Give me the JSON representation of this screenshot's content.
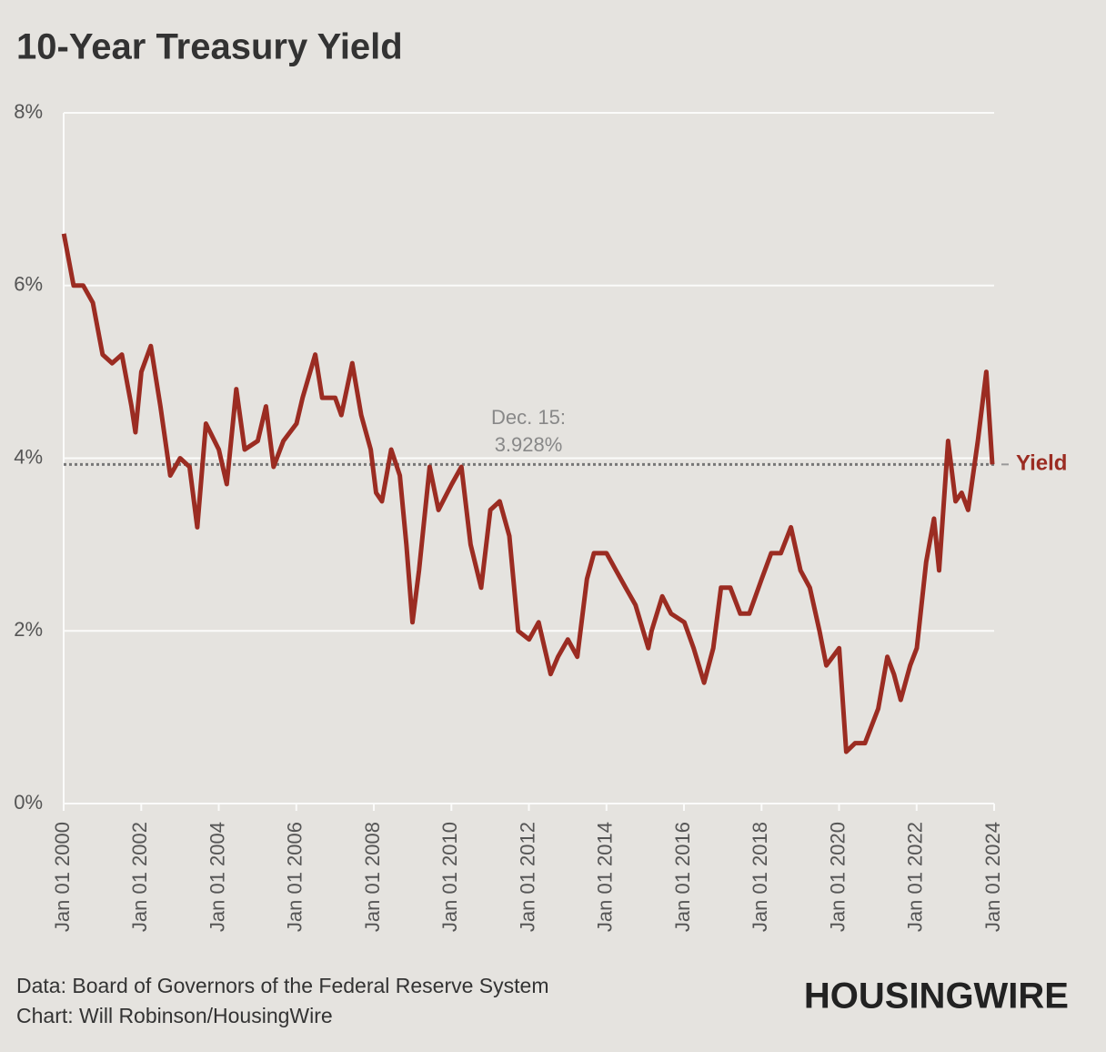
{
  "chart_data": {
    "type": "line",
    "title": "10-Year Treasury Yield",
    "x": [
      "2000-01-03",
      "2000-04-03",
      "2000-07-03",
      "2000-10-02",
      "2001-01-02",
      "2001-04-02",
      "2001-07-02",
      "2001-10-01",
      "2001-11-07",
      "2002-01-02",
      "2002-04-01",
      "2002-07-01",
      "2002-10-01",
      "2003-01-02",
      "2003-04-01",
      "2003-06-13",
      "2003-09-02",
      "2004-01-02",
      "2004-03-16",
      "2004-06-14",
      "2004-09-01",
      "2005-01-03",
      "2005-03-21",
      "2005-06-01",
      "2005-09-01",
      "2006-01-03",
      "2006-03-01",
      "2006-06-28",
      "2006-09-01",
      "2007-01-02",
      "2007-03-01",
      "2007-06-12",
      "2007-09-04",
      "2007-12-03",
      "2008-01-22",
      "2008-03-17",
      "2008-06-13",
      "2008-09-02",
      "2008-11-03",
      "2008-12-30",
      "2009-03-02",
      "2009-06-10",
      "2009-09-01",
      "2010-01-04",
      "2010-04-05",
      "2010-07-01",
      "2010-10-08",
      "2011-01-03",
      "2011-04-01",
      "2011-07-01",
      "2011-09-22",
      "2012-01-03",
      "2012-04-02",
      "2012-07-24",
      "2012-10-01",
      "2013-01-02",
      "2013-04-01",
      "2013-07-01",
      "2013-09-05",
      "2014-01-02",
      "2014-04-01",
      "2014-07-01",
      "2014-10-01",
      "2015-01-30",
      "2015-03-02",
      "2015-06-10",
      "2015-09-01",
      "2016-01-04",
      "2016-04-01",
      "2016-07-08",
      "2016-10-03",
      "2016-12-15",
      "2017-03-13",
      "2017-06-14",
      "2017-09-07",
      "2018-01-02",
      "2018-04-02",
      "2018-07-02",
      "2018-10-05",
      "2019-01-03",
      "2019-04-01",
      "2019-07-01",
      "2019-09-03",
      "2020-01-02",
      "2020-03-09",
      "2020-06-01",
      "2020-09-01",
      "2021-01-04",
      "2021-03-31",
      "2021-06-01",
      "2021-08-04",
      "2021-11-01",
      "2022-01-03",
      "2022-04-01",
      "2022-06-14",
      "2022-08-01",
      "2022-10-24",
      "2023-01-03",
      "2023-03-01",
      "2023-05-01",
      "2023-08-01",
      "2023-10-19",
      "2023-11-15",
      "2023-12-15"
    ],
    "series": [
      {
        "name": "Yield",
        "color": "#9b2c22",
        "values": [
          6.6,
          6.0,
          6.0,
          5.8,
          5.2,
          5.1,
          5.2,
          4.6,
          4.3,
          5.0,
          5.3,
          4.6,
          3.8,
          4.0,
          3.9,
          3.2,
          4.4,
          4.1,
          3.7,
          4.8,
          4.1,
          4.2,
          4.6,
          3.9,
          4.2,
          4.4,
          4.7,
          5.2,
          4.7,
          4.7,
          4.5,
          5.1,
          4.5,
          4.1,
          3.6,
          3.5,
          4.1,
          3.8,
          3.0,
          2.1,
          2.7,
          3.9,
          3.4,
          3.7,
          3.9,
          3.0,
          2.5,
          3.4,
          3.5,
          3.1,
          2.0,
          1.9,
          2.1,
          1.5,
          1.7,
          1.9,
          1.7,
          2.6,
          2.9,
          2.9,
          2.7,
          2.5,
          2.3,
          1.8,
          2.0,
          2.4,
          2.2,
          2.1,
          1.8,
          1.4,
          1.8,
          2.5,
          2.5,
          2.2,
          2.2,
          2.6,
          2.9,
          2.9,
          3.2,
          2.7,
          2.5,
          2.0,
          1.6,
          1.8,
          0.6,
          0.7,
          0.7,
          1.1,
          1.7,
          1.5,
          1.2,
          1.6,
          1.8,
          2.8,
          3.3,
          2.7,
          4.2,
          3.5,
          3.6,
          3.4,
          4.2,
          5.0,
          4.5,
          3.928
        ]
      }
    ],
    "xlim": [
      "2000-01-01",
      "2024-01-01"
    ],
    "xticks": [
      {
        "value": "2000-01-01",
        "label": "Jan 01 2000"
      },
      {
        "value": "2002-01-01",
        "label": "Jan 01 2002"
      },
      {
        "value": "2004-01-01",
        "label": "Jan 01 2004"
      },
      {
        "value": "2006-01-01",
        "label": "Jan 01 2006"
      },
      {
        "value": "2008-01-01",
        "label": "Jan 01 2008"
      },
      {
        "value": "2010-01-01",
        "label": "Jan 01 2010"
      },
      {
        "value": "2012-01-01",
        "label": "Jan 01 2012"
      },
      {
        "value": "2014-01-01",
        "label": "Jan 01 2014"
      },
      {
        "value": "2016-01-01",
        "label": "Jan 01 2016"
      },
      {
        "value": "2018-01-01",
        "label": "Jan 01 2018"
      },
      {
        "value": "2020-01-01",
        "label": "Jan 01 2020"
      },
      {
        "value": "2022-01-01",
        "label": "Jan 01 2022"
      },
      {
        "value": "2024-01-01",
        "label": "Jan 01 2024"
      }
    ],
    "ylim": [
      0,
      8
    ],
    "yticks": [
      {
        "value": 0,
        "label": "0%"
      },
      {
        "value": 2,
        "label": "2%"
      },
      {
        "value": 4,
        "label": "4%"
      },
      {
        "value": 6,
        "label": "6%"
      },
      {
        "value": 8,
        "label": "8%"
      }
    ],
    "grid": true,
    "annotation": {
      "lines": [
        "Dec. 15:",
        "3.928%"
      ],
      "value": 3.928
    },
    "source": "Data: Board of Governors of the Federal Reserve System",
    "credit": "Chart: Will Robinson/HousingWire",
    "logo": "HOUSINGWIRE"
  }
}
